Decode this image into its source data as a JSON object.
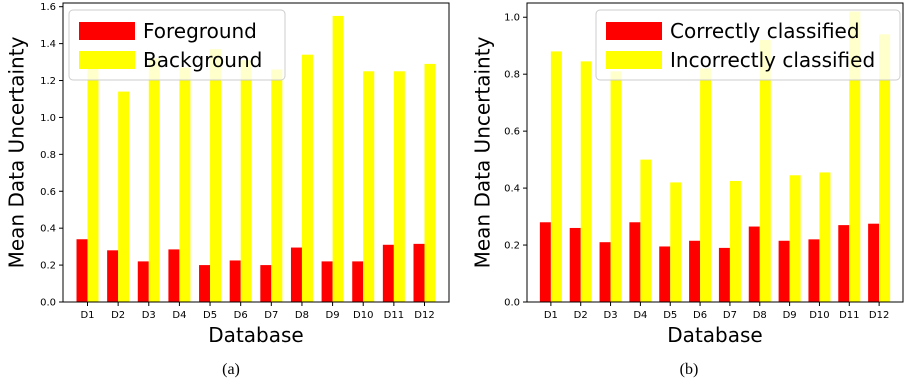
{
  "colors": {
    "series_a": "#ff0000",
    "series_b": "#ffff00",
    "axis": "#000000",
    "legend_border": "#cccccc"
  },
  "chart_data": [
    {
      "type": "bar",
      "caption": "(a)",
      "xlabel": "Database",
      "ylabel": "Mean Data Uncertainty",
      "categories": [
        "D1",
        "D2",
        "D3",
        "D4",
        "D5",
        "D6",
        "D7",
        "D8",
        "D9",
        "D10",
        "D11",
        "D12"
      ],
      "ylim": [
        0,
        1.62
      ],
      "yticks": [
        0.0,
        0.2,
        0.4,
        0.6,
        0.8,
        1.0,
        1.2,
        1.4,
        1.6
      ],
      "ytick_labels": [
        "0.0",
        "0.2",
        "0.4",
        "0.6",
        "0.8",
        "1.0",
        "1.2",
        "1.4",
        "1.6"
      ],
      "legend_position": "top-left",
      "grid": false,
      "series": [
        {
          "name": "Foreground",
          "color": "#ff0000",
          "values": [
            0.34,
            0.28,
            0.22,
            0.285,
            0.2,
            0.225,
            0.2,
            0.295,
            0.22,
            0.22,
            0.31,
            0.315
          ]
        },
        {
          "name": "Background",
          "color": "#ffff00",
          "values": [
            1.27,
            1.14,
            1.32,
            1.27,
            1.37,
            1.31,
            1.26,
            1.34,
            1.55,
            1.25,
            1.25,
            1.29
          ]
        }
      ]
    },
    {
      "type": "bar",
      "caption": "(b)",
      "xlabel": "Database",
      "ylabel": "Mean Data Uncertainty",
      "categories": [
        "D1",
        "D2",
        "D3",
        "D4",
        "D5",
        "D6",
        "D7",
        "D8",
        "D9",
        "D10",
        "D11",
        "D12"
      ],
      "ylim": [
        0,
        1.05
      ],
      "yticks": [
        0.0,
        0.2,
        0.4,
        0.6,
        0.8,
        1.0
      ],
      "ytick_labels": [
        "0.0",
        "0.2",
        "0.4",
        "0.6",
        "0.8",
        "1.0"
      ],
      "legend_position": "top-right",
      "grid": false,
      "series": [
        {
          "name": "Correctly classified",
          "color": "#ff0000",
          "values": [
            0.28,
            0.26,
            0.21,
            0.28,
            0.195,
            0.215,
            0.19,
            0.265,
            0.215,
            0.22,
            0.27,
            0.275
          ]
        },
        {
          "name": "Incorrectly classified",
          "color": "#ffff00",
          "values": [
            0.88,
            0.845,
            0.81,
            0.5,
            0.42,
            0.82,
            0.425,
            0.92,
            0.445,
            0.455,
            1.02,
            0.94
          ]
        }
      ]
    }
  ]
}
